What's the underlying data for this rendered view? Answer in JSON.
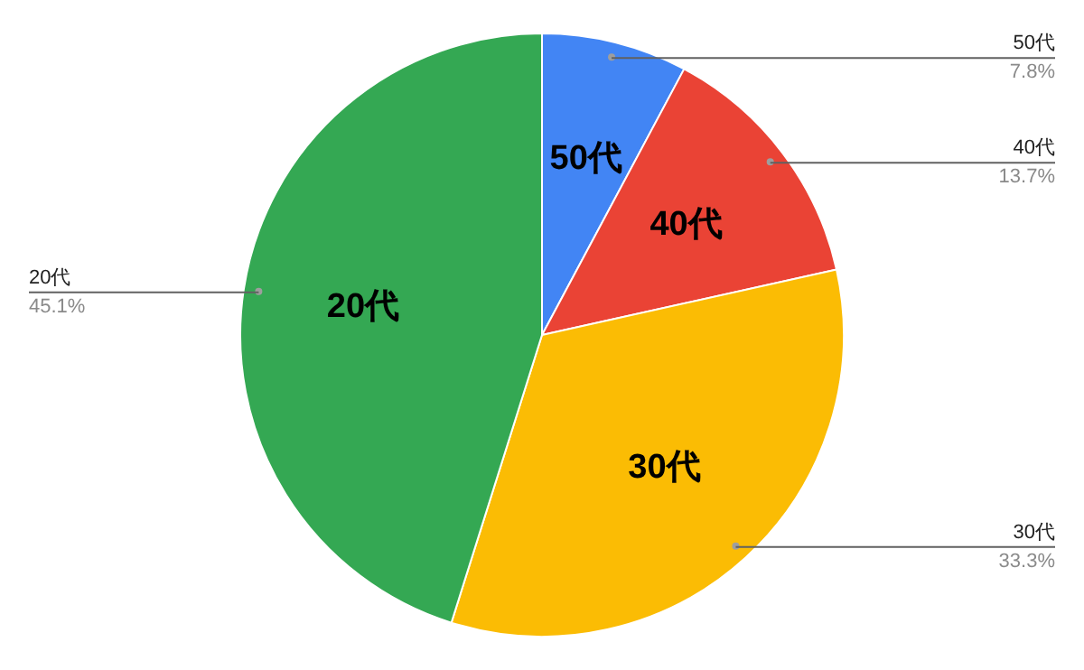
{
  "chart_data": {
    "type": "pie",
    "categories": [
      "50代",
      "40代",
      "30代",
      "20代"
    ],
    "values": [
      7.8,
      13.7,
      33.3,
      45.1
    ],
    "colors": [
      "#4285f4",
      "#ea4335",
      "#fbbc04",
      "#34a853"
    ],
    "value_labels": [
      "7.8%",
      "13.7%",
      "33.3%",
      "45.1%"
    ],
    "legend": false
  }
}
